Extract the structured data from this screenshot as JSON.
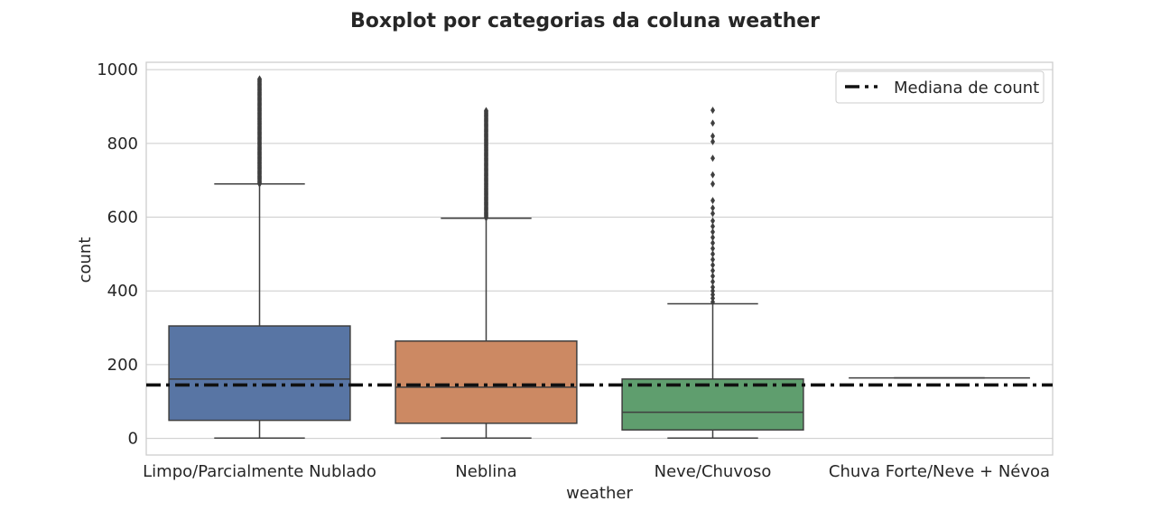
{
  "chart_data": {
    "type": "box",
    "title": "Boxplot por categorias da coluna weather",
    "xlabel": "weather",
    "ylabel": "count",
    "ylim": [
      -45,
      1020
    ],
    "yticks": [
      0,
      200,
      400,
      600,
      800,
      1000
    ],
    "grid": true,
    "legend_position": "top-right",
    "categories": [
      "Limpo/Parcialmente Nublado",
      "Neblina",
      "Neve/Chuvoso",
      "Chuva Forte/Neve + Névoa"
    ],
    "boxes": [
      {
        "category": "Limpo/Parcialmente Nublado",
        "whisker_low": 1,
        "q1": 49,
        "median": 161,
        "q3": 305,
        "whisker_high": 690,
        "outliers_range": [
          690,
          977
        ],
        "color": "#5875a4"
      },
      {
        "category": "Neblina",
        "whisker_low": 1,
        "q1": 41,
        "median": 139,
        "q3": 264,
        "whisker_high": 597,
        "outliers_range": [
          598,
          890
        ],
        "color": "#cc8963"
      },
      {
        "category": "Neve/Chuvoso",
        "whisker_low": 1,
        "q1": 23,
        "median": 71,
        "q3": 161,
        "whisker_high": 365,
        "outliers": [
          370,
          380,
          390,
          400,
          410,
          425,
          440,
          455,
          470,
          485,
          500,
          515,
          530,
          545,
          560,
          575,
          590,
          610,
          625,
          645,
          690,
          715,
          760,
          805,
          820,
          855,
          890
        ],
        "color": "#5f9e6e"
      },
      {
        "category": "Chuva Forte/Neve + Névoa",
        "whisker_low": 164,
        "q1": 164,
        "median": 164,
        "q3": 164,
        "whisker_high": 164,
        "outliers": [],
        "color": "#b55d60"
      }
    ],
    "reference_line": {
      "label": "Mediana de count",
      "value": 145,
      "style": "dash-dot",
      "color": "#111111"
    }
  }
}
